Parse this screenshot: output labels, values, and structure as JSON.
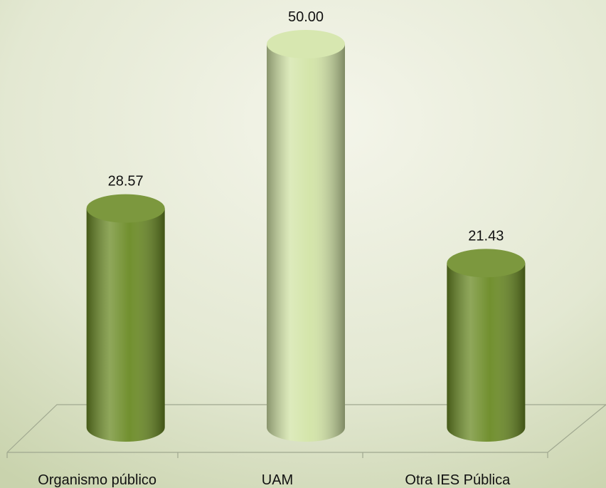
{
  "chart_data": {
    "type": "bar",
    "categories": [
      "Organismo público",
      "UAM",
      "Otra IES Pública"
    ],
    "values": [
      28.57,
      50,
      21.43
    ],
    "value_labels": [
      "28.57",
      "50.00",
      "21.43"
    ],
    "colors": [
      "#6a8a24",
      "#d2e4a6",
      "#6a8a24"
    ]
  }
}
